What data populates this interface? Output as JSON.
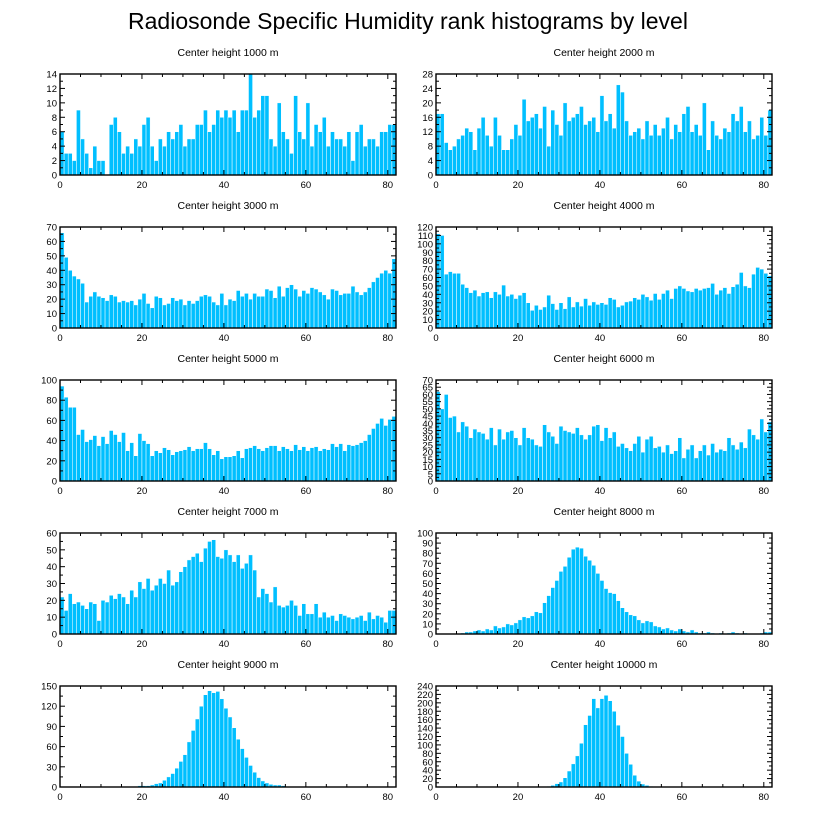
{
  "title": "Radiosonde Specific Humidity rank histograms by level",
  "colors": {
    "bar": "#00bfff",
    "bar_edge": "#ffffff",
    "axis": "#000000"
  },
  "chart_data": [
    {
      "type": "bar",
      "title": "Center height 1000 m",
      "xlim": [
        0,
        82
      ],
      "ylim": [
        0,
        14
      ],
      "xticks": [
        0,
        20,
        40,
        60,
        80
      ],
      "yticks": [
        0,
        2,
        4,
        6,
        8,
        10,
        12,
        14
      ],
      "values": [
        6,
        3,
        3,
        2,
        9,
        5,
        3,
        1,
        4,
        2,
        2,
        0,
        7,
        8,
        6,
        3,
        4,
        3,
        5,
        4,
        7,
        8,
        4,
        2,
        5,
        4,
        6,
        5,
        6,
        7,
        4,
        5,
        5,
        7,
        7,
        9,
        6,
        7,
        9,
        8,
        9,
        8,
        9,
        6,
        9,
        9,
        14,
        8,
        9,
        11,
        11,
        5,
        4,
        10,
        6,
        5,
        3,
        11,
        6,
        5,
        10,
        4,
        7,
        6,
        8,
        4,
        6,
        5,
        5,
        4,
        6,
        2,
        6,
        7,
        4,
        5,
        5,
        4,
        6,
        6,
        7,
        7
      ]
    },
    {
      "type": "bar",
      "title": "Center height 2000 m",
      "xlim": [
        0,
        82
      ],
      "ylim": [
        0,
        28
      ],
      "xticks": [
        0,
        20,
        40,
        60,
        80
      ],
      "yticks": [
        0,
        4,
        8,
        12,
        16,
        20,
        24,
        28
      ],
      "values": [
        17,
        17,
        9,
        7,
        8,
        10,
        11,
        13,
        12,
        7,
        13,
        16,
        11,
        8,
        16,
        11,
        7,
        7,
        10,
        14,
        11,
        21,
        15,
        16,
        17,
        13,
        19,
        8,
        18,
        14,
        11,
        20,
        15,
        16,
        17,
        19,
        14,
        15,
        16,
        12,
        22,
        15,
        17,
        13,
        25,
        23,
        15,
        11,
        12,
        13,
        10,
        15,
        11,
        14,
        11,
        13,
        16,
        10,
        14,
        12,
        17,
        19,
        12,
        14,
        11,
        20,
        7,
        15,
        11,
        10,
        13,
        12,
        17,
        15,
        19,
        12,
        15,
        10,
        11,
        16,
        11,
        18
      ]
    },
    {
      "type": "bar",
      "title": "Center height 3000 m",
      "xlim": [
        0,
        82
      ],
      "ylim": [
        0,
        70
      ],
      "xticks": [
        0,
        20,
        40,
        60,
        80
      ],
      "yticks": [
        0,
        10,
        20,
        30,
        40,
        50,
        60,
        70
      ],
      "values": [
        66,
        49,
        40,
        36,
        34,
        31,
        18,
        22,
        25,
        22,
        21,
        19,
        23,
        22,
        18,
        19,
        18,
        19,
        16,
        20,
        24,
        17,
        14,
        22,
        21,
        16,
        17,
        21,
        19,
        20,
        16,
        19,
        17,
        19,
        22,
        23,
        22,
        18,
        16,
        24,
        16,
        20,
        19,
        26,
        22,
        24,
        20,
        24,
        22,
        22,
        27,
        26,
        21,
        29,
        22,
        28,
        30,
        27,
        22,
        26,
        24,
        28,
        27,
        25,
        23,
        20,
        27,
        26,
        23,
        24,
        24,
        29,
        25,
        23,
        25,
        28,
        32,
        35,
        38,
        40,
        38,
        48
      ]
    },
    {
      "type": "bar",
      "title": "Center height 4000 m",
      "xlim": [
        0,
        82
      ],
      "ylim": [
        0,
        120
      ],
      "xticks": [
        0,
        20,
        40,
        60,
        80
      ],
      "yticks": [
        0,
        10,
        20,
        30,
        40,
        50,
        60,
        70,
        80,
        90,
        100,
        110,
        120
      ],
      "values": [
        112,
        110,
        64,
        67,
        65,
        65,
        52,
        48,
        42,
        45,
        38,
        42,
        43,
        36,
        43,
        40,
        51,
        38,
        40,
        35,
        39,
        42,
        30,
        21,
        27,
        22,
        25,
        39,
        29,
        22,
        30,
        23,
        37,
        25,
        31,
        26,
        35,
        27,
        31,
        28,
        30,
        28,
        36,
        34,
        25,
        27,
        31,
        32,
        36,
        34,
        40,
        37,
        33,
        41,
        34,
        41,
        45,
        35,
        47,
        50,
        47,
        44,
        43,
        47,
        45,
        47,
        48,
        53,
        40,
        45,
        48,
        41,
        49,
        52,
        66,
        50,
        48,
        64,
        72,
        70,
        65,
        62
      ]
    },
    {
      "type": "bar",
      "title": "Center height 5000 m",
      "xlim": [
        0,
        82
      ],
      "ylim": [
        0,
        100
      ],
      "xticks": [
        0,
        20,
        40,
        60,
        80
      ],
      "yticks": [
        0,
        20,
        40,
        60,
        80,
        100
      ],
      "values": [
        94,
        83,
        73,
        73,
        46,
        51,
        39,
        41,
        45,
        35,
        44,
        37,
        50,
        46,
        39,
        48,
        30,
        38,
        25,
        47,
        40,
        37,
        25,
        30,
        28,
        33,
        31,
        26,
        29,
        30,
        31,
        34,
        30,
        32,
        32,
        38,
        32,
        26,
        30,
        22,
        24,
        24,
        25,
        30,
        23,
        32,
        33,
        35,
        32,
        30,
        33,
        35,
        35,
        30,
        34,
        32,
        30,
        36,
        31,
        34,
        30,
        33,
        34,
        30,
        32,
        31,
        37,
        34,
        37,
        30,
        36,
        35,
        36,
        38,
        40,
        46,
        52,
        57,
        62,
        55,
        61,
        64
      ]
    },
    {
      "type": "bar",
      "title": "Center height 6000 m",
      "xlim": [
        0,
        82
      ],
      "ylim": [
        0,
        70
      ],
      "xticks": [
        0,
        20,
        40,
        60,
        80
      ],
      "yticks": [
        0,
        5,
        10,
        15,
        20,
        25,
        30,
        35,
        40,
        45,
        50,
        55,
        60,
        65,
        70
      ],
      "values": [
        62,
        50,
        60,
        44,
        45,
        34,
        41,
        38,
        30,
        36,
        34,
        33,
        29,
        37,
        25,
        36,
        29,
        34,
        35,
        30,
        25,
        37,
        30,
        29,
        25,
        24,
        39,
        34,
        31,
        26,
        38,
        35,
        34,
        33,
        37,
        32,
        29,
        32,
        38,
        39,
        28,
        37,
        30,
        34,
        24,
        26,
        23,
        21,
        26,
        31,
        20,
        29,
        31,
        23,
        24,
        20,
        25,
        19,
        21,
        30,
        16,
        22,
        25,
        16,
        21,
        25,
        18,
        26,
        20,
        22,
        21,
        30,
        25,
        22,
        27,
        23,
        36,
        32,
        29,
        43,
        34,
        41
      ]
    },
    {
      "type": "bar",
      "title": "Center height 7000 m",
      "xlim": [
        0,
        82
      ],
      "ylim": [
        0,
        60
      ],
      "xticks": [
        0,
        20,
        40,
        60,
        80
      ],
      "yticks": [
        0,
        10,
        20,
        30,
        40,
        50,
        60
      ],
      "values": [
        22,
        14,
        24,
        18,
        19,
        17,
        15,
        19,
        18,
        8,
        20,
        19,
        23,
        21,
        24,
        22,
        18,
        26,
        22,
        31,
        27,
        33,
        26,
        29,
        33,
        30,
        38,
        29,
        31,
        37,
        40,
        44,
        46,
        48,
        43,
        51,
        55,
        56,
        46,
        45,
        50,
        47,
        43,
        47,
        39,
        42,
        47,
        38,
        22,
        27,
        24,
        19,
        28,
        17,
        16,
        17,
        20,
        17,
        11,
        18,
        12,
        12,
        18,
        10,
        13,
        10,
        11,
        8,
        12,
        11,
        10,
        9,
        10,
        11,
        8,
        13,
        9,
        11,
        10,
        7,
        14,
        14
      ]
    },
    {
      "type": "bar",
      "title": "Center height 8000 m",
      "xlim": [
        0,
        82
      ],
      "ylim": [
        0,
        100
      ],
      "xticks": [
        0,
        20,
        40,
        60,
        80
      ],
      "yticks": [
        0,
        10,
        20,
        30,
        40,
        50,
        60,
        70,
        80,
        90,
        100
      ],
      "values": [
        0,
        0,
        0,
        0,
        0,
        0,
        1,
        2,
        2,
        3,
        4,
        3,
        5,
        4,
        8,
        6,
        7,
        10,
        9,
        11,
        14,
        17,
        16,
        18,
        22,
        21,
        31,
        38,
        46,
        53,
        62,
        67,
        76,
        84,
        86,
        85,
        77,
        73,
        68,
        60,
        53,
        45,
        41,
        40,
        33,
        26,
        22,
        19,
        18,
        14,
        11,
        13,
        12,
        8,
        7,
        5,
        6,
        4,
        3,
        5,
        3,
        2,
        4,
        2,
        1,
        1,
        2,
        1,
        0,
        1,
        0,
        1,
        2,
        1,
        0,
        1,
        0,
        0,
        0,
        1,
        2,
        2
      ]
    },
    {
      "type": "bar",
      "title": "Center height 9000 m",
      "xlim": [
        0,
        82
      ],
      "ylim": [
        0,
        150
      ],
      "xticks": [
        0,
        20,
        40,
        60,
        80
      ],
      "yticks": [
        0,
        30,
        60,
        90,
        120,
        150
      ],
      "values": [
        0,
        0,
        0,
        0,
        0,
        0,
        0,
        0,
        0,
        0,
        0,
        0,
        0,
        0,
        0,
        0,
        0,
        0,
        1,
        2,
        2,
        2,
        3,
        5,
        6,
        10,
        15,
        20,
        28,
        38,
        48,
        67,
        84,
        101,
        120,
        137,
        143,
        140,
        142,
        131,
        117,
        104,
        88,
        71,
        57,
        44,
        32,
        22,
        14,
        9,
        6,
        4,
        3,
        3,
        2,
        1,
        0,
        0,
        0,
        0,
        0,
        0,
        0,
        1,
        0,
        0,
        0,
        0,
        0,
        0,
        0,
        0,
        0,
        0,
        0,
        0,
        0,
        0,
        0,
        0,
        0,
        0
      ]
    },
    {
      "type": "bar",
      "title": "Center height 10000 m",
      "xlim": [
        0,
        82
      ],
      "ylim": [
        0,
        240
      ],
      "xticks": [
        0,
        20,
        40,
        60,
        80
      ],
      "yticks": [
        0,
        20,
        40,
        60,
        80,
        100,
        120,
        140,
        160,
        180,
        200,
        220,
        240
      ],
      "values": [
        0,
        0,
        0,
        0,
        0,
        0,
        0,
        0,
        0,
        0,
        0,
        0,
        0,
        0,
        0,
        0,
        0,
        0,
        0,
        0,
        0,
        0,
        0,
        0,
        0,
        0,
        0,
        2,
        4,
        8,
        12,
        22,
        38,
        55,
        74,
        104,
        148,
        170,
        210,
        188,
        210,
        218,
        205,
        180,
        147,
        120,
        80,
        54,
        28,
        14,
        7,
        4,
        2,
        1,
        0,
        1,
        0,
        0,
        0,
        0,
        0,
        0,
        0,
        0,
        0,
        0,
        0,
        0,
        0,
        0,
        0,
        0,
        0,
        0,
        0,
        0,
        0,
        0,
        0,
        0,
        0,
        0
      ]
    }
  ]
}
